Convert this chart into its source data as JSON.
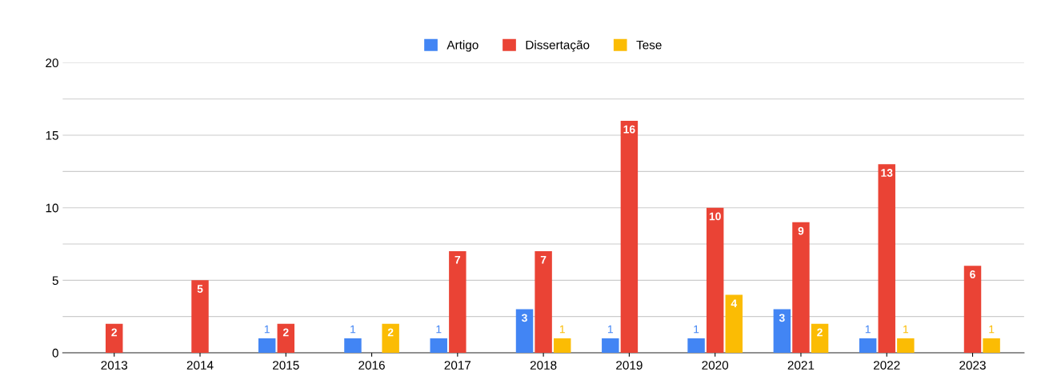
{
  "chart_data": {
    "type": "bar",
    "categories": [
      "2013",
      "2014",
      "2015",
      "2016",
      "2017",
      "2018",
      "2019",
      "2020",
      "2021",
      "2022",
      "2023"
    ],
    "series": [
      {
        "name": "Artigo",
        "color": "#4285f4",
        "values": [
          null,
          null,
          1,
          1,
          1,
          3,
          1,
          1,
          3,
          1,
          null
        ]
      },
      {
        "name": "Dissertação",
        "color": "#ea4335",
        "values": [
          2,
          5,
          2,
          null,
          7,
          7,
          16,
          10,
          9,
          13,
          6
        ]
      },
      {
        "name": "Tese",
        "color": "#fbbc04",
        "values": [
          null,
          null,
          null,
          2,
          null,
          1,
          null,
          4,
          2,
          1,
          1
        ]
      }
    ],
    "ylim": [
      0,
      20
    ],
    "yticks": [
      0,
      {
        "value": 2.5,
        "label": null
      },
      5,
      {
        "value": 7.5,
        "label": null
      },
      10,
      {
        "value": 12.5,
        "label": null
      },
      15,
      {
        "value": 17.5,
        "label": null
      },
      20
    ],
    "grid": "y",
    "legend": "top",
    "data_labels": true
  }
}
